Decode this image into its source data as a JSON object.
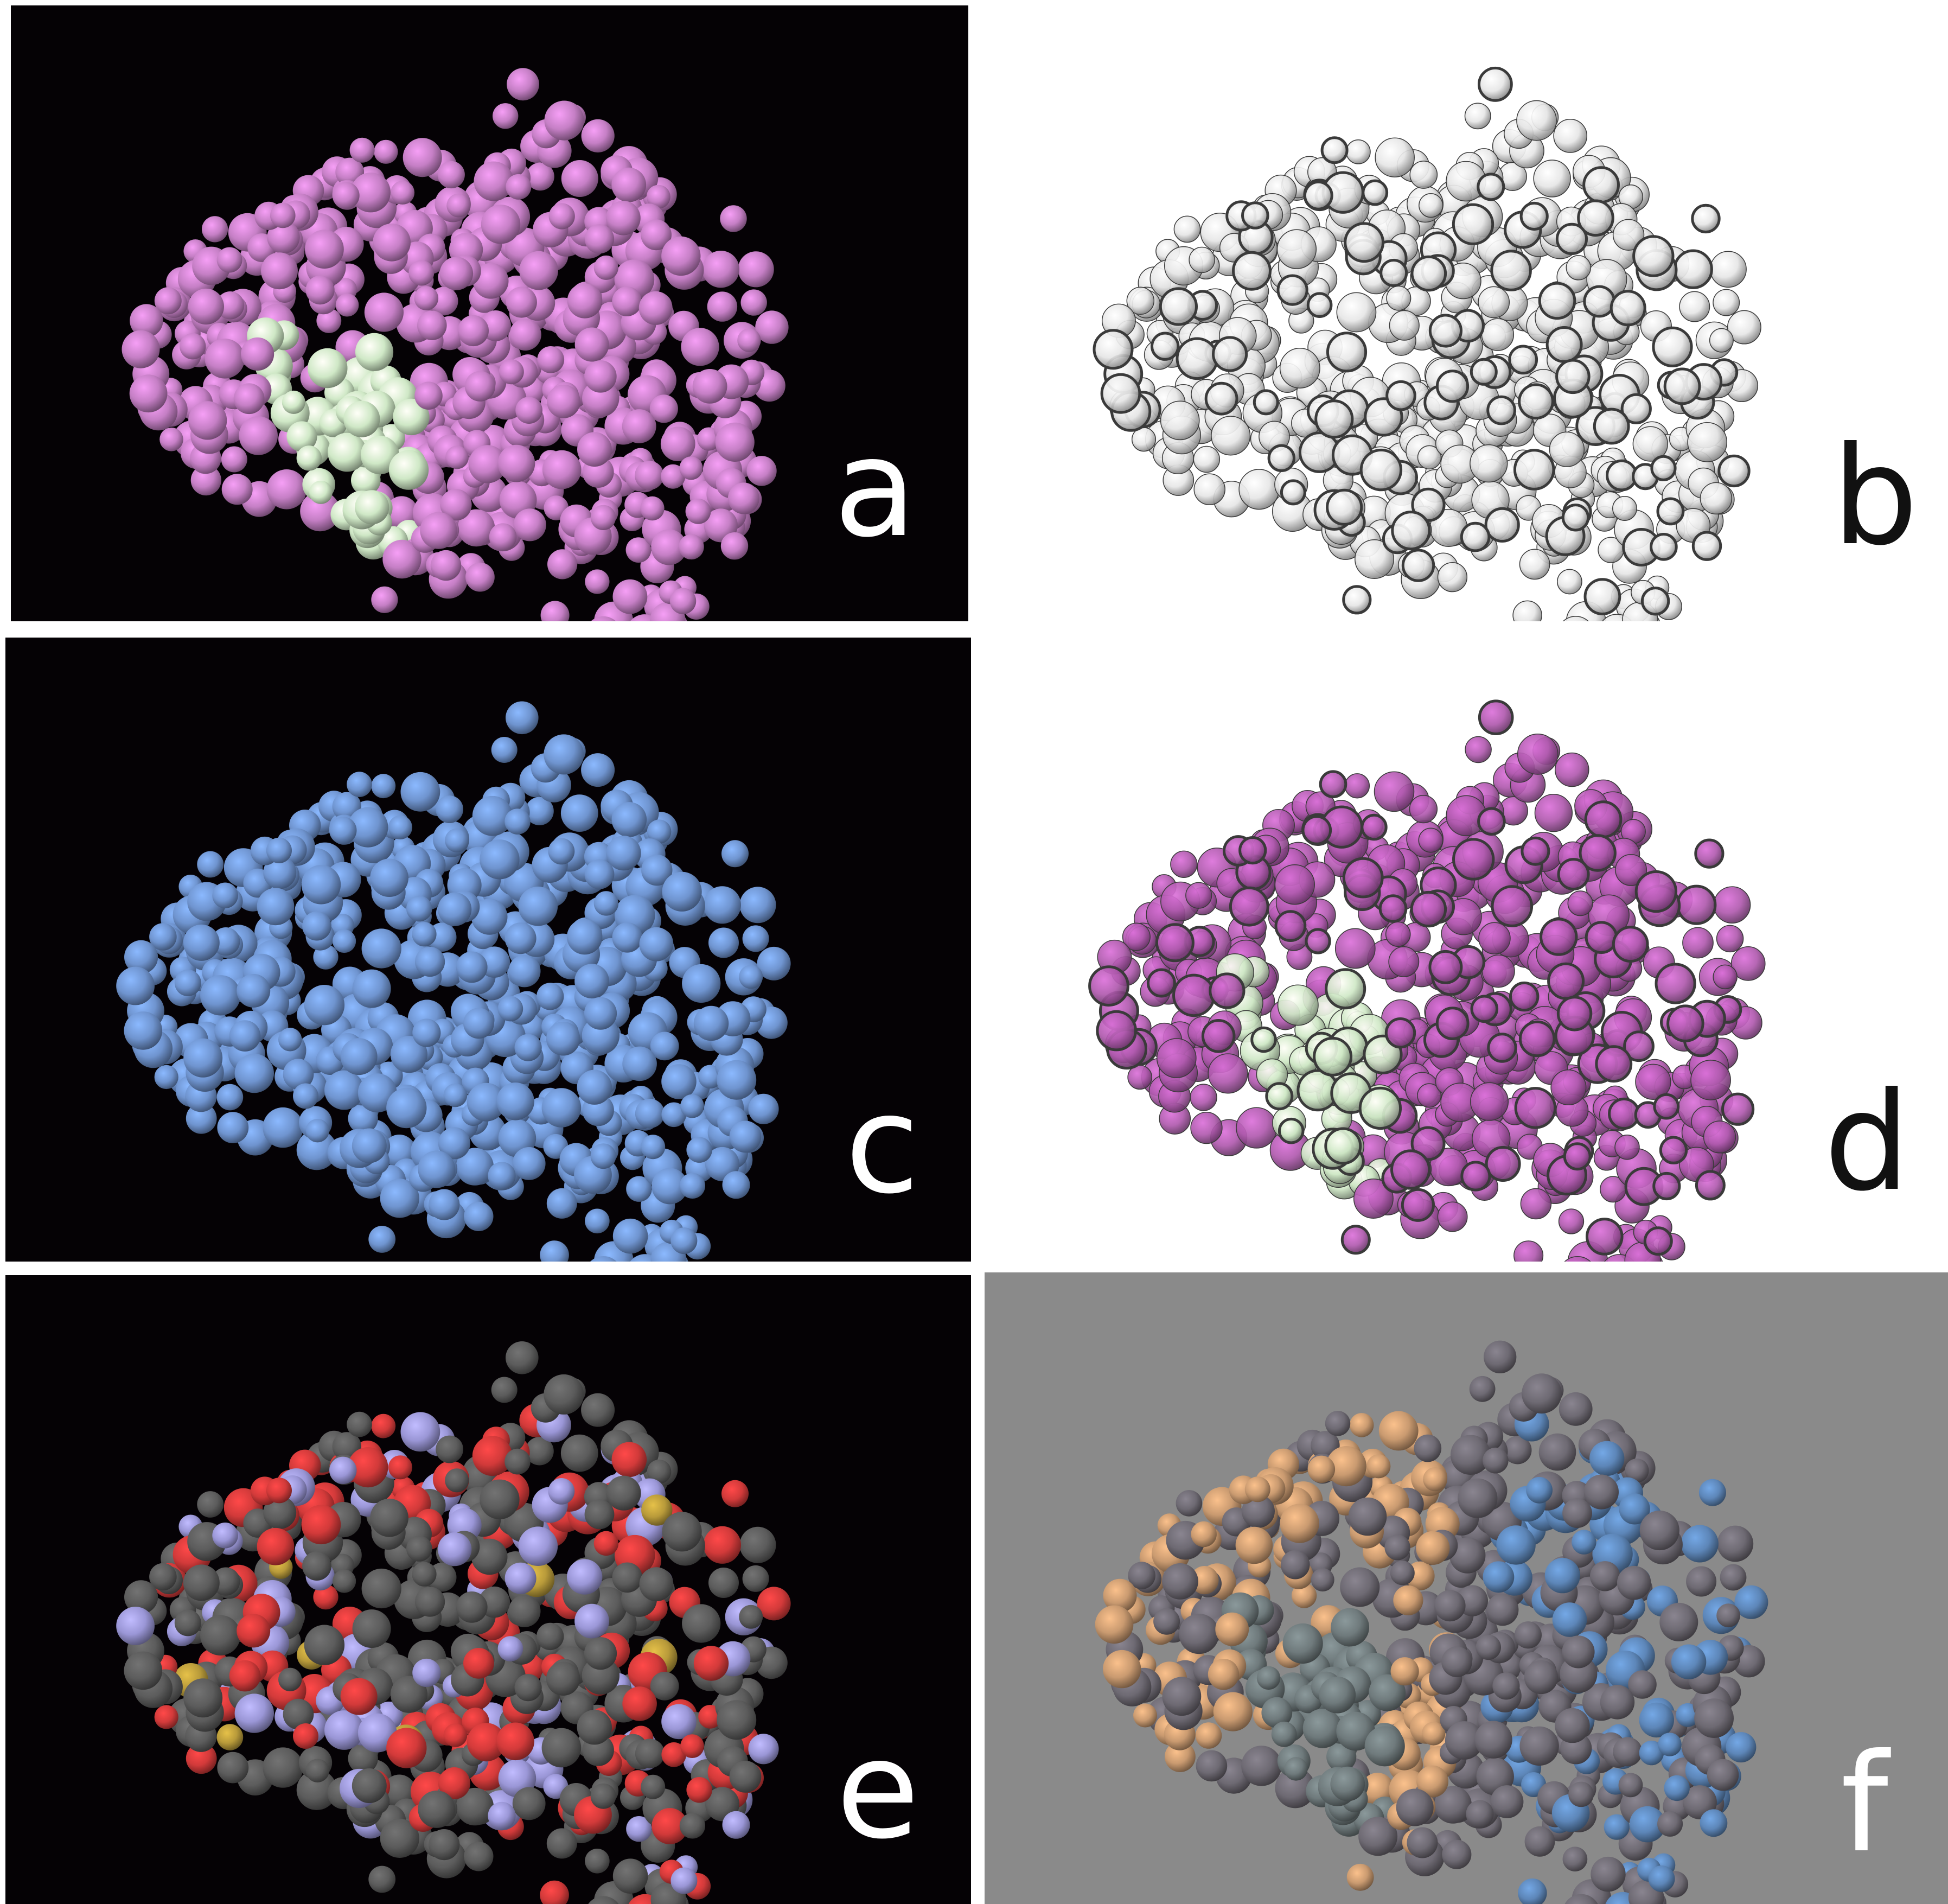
{
  "figure": {
    "panels": [
      {
        "id": "a",
        "label": "a",
        "background": "#050205",
        "label_color": "#ffffff",
        "style": "flat",
        "base_color": "#c57fc5",
        "highlight_color": "#cfe8c6"
      },
      {
        "id": "b",
        "label": "b",
        "background": "#ffffff",
        "label_color": "#111111",
        "style": "outlined",
        "base_color": "#e6e6e6",
        "highlight_color": "#e6e6e6"
      },
      {
        "id": "c",
        "label": "c",
        "background": "#050205",
        "label_color": "#ffffff",
        "style": "flat",
        "base_color": "#6f94cf",
        "highlight_color": "#6f94cf"
      },
      {
        "id": "d",
        "label": "d",
        "background": "#ffffff",
        "label_color": "#111111",
        "style": "outlined",
        "base_color": "#b05aae",
        "highlight_color": "#cfe8c6"
      },
      {
        "id": "e",
        "label": "e",
        "background": "#050205",
        "label_color": "#ffffff",
        "style": "cpk",
        "base_color": "#5c5c5c",
        "highlight_color": "#5c5c5c"
      },
      {
        "id": "f",
        "label": "f",
        "background": "#8a8a8a",
        "label_color": "#ffffff",
        "style": "lit",
        "base_color": "#6e6a73",
        "highlight_color": "#6f7a7c"
      }
    ],
    "atom_colors": {
      "carbon": "#5c5c5c",
      "oxygen": "#d23a3a",
      "nitrogen": "#9a96d6",
      "sulfur": "#b89a3a"
    }
  }
}
